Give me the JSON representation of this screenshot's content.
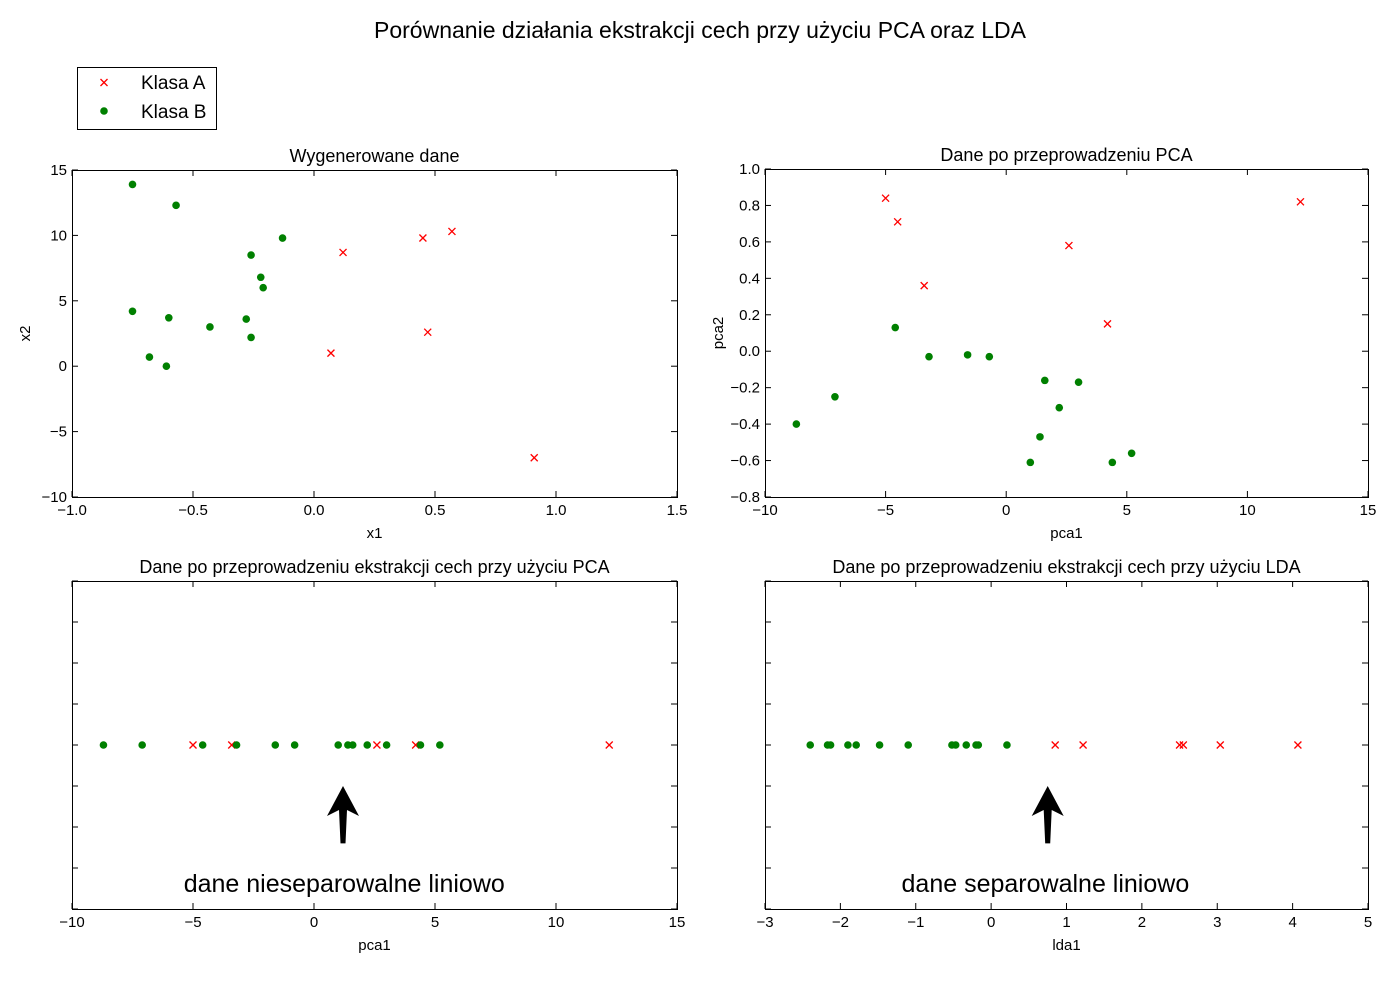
{
  "figure": {
    "title": "Porównanie działania ekstrakcji cech przy użyciu PCA oraz LDA",
    "legend": {
      "placement": "top-left",
      "entries": [
        {
          "label": "Klasa A",
          "marker": "x",
          "color": "#ff0000"
        },
        {
          "label": "Klasa B",
          "marker": "o",
          "color": "#008000"
        }
      ]
    },
    "annotations": {
      "pca": "dane nieseparowalne liniowo",
      "lda": "dane separowalne liniowo"
    }
  },
  "colors": {
    "class_a": "#ff0000",
    "class_b": "#008000"
  },
  "chart_data": [
    {
      "id": "generated",
      "type": "scatter",
      "title": "Wygenerowane dane",
      "xlabel": "x1",
      "ylabel": "x2",
      "xlim": [
        -1.0,
        1.5
      ],
      "ylim": [
        -10,
        15
      ],
      "xticks": [
        -1.0,
        -0.5,
        0.0,
        0.5,
        1.0,
        1.5
      ],
      "xtick_labels": [
        "−1.0",
        "−0.5",
        "0.0",
        "0.5",
        "1.0",
        "1.5"
      ],
      "yticks": [
        -10,
        -5,
        0,
        5,
        10,
        15
      ],
      "ytick_labels": [
        "−10",
        "−5",
        "0",
        "5",
        "10",
        "15"
      ],
      "grid": false,
      "series": [
        {
          "name": "Klasa A",
          "marker": "x",
          "color": "#ff0000",
          "points": [
            [
              0.12,
              8.7
            ],
            [
              0.45,
              9.8
            ],
            [
              0.57,
              10.3
            ],
            [
              0.07,
              1.0
            ],
            [
              0.47,
              2.6
            ],
            [
              0.91,
              -7.0
            ]
          ]
        },
        {
          "name": "Klasa B",
          "marker": "o",
          "color": "#008000",
          "points": [
            [
              -0.75,
              13.9
            ],
            [
              -0.57,
              12.3
            ],
            [
              -0.13,
              9.8
            ],
            [
              -0.26,
              8.5
            ],
            [
              -0.22,
              6.8
            ],
            [
              -0.21,
              6.0
            ],
            [
              -0.75,
              4.2
            ],
            [
              -0.6,
              3.7
            ],
            [
              -0.43,
              3.0
            ],
            [
              -0.28,
              3.6
            ],
            [
              -0.26,
              2.2
            ],
            [
              -0.68,
              0.7
            ],
            [
              -0.61,
              0.0
            ]
          ]
        }
      ]
    },
    {
      "id": "pca2d",
      "type": "scatter",
      "title": "Dane po przeprowadzeniu PCA",
      "xlabel": "pca1",
      "ylabel": "pca2",
      "xlim": [
        -10,
        15
      ],
      "ylim": [
        -0.8,
        1.0
      ],
      "xticks": [
        -10,
        -5,
        0,
        5,
        10,
        15
      ],
      "xtick_labels": [
        "−10",
        "−5",
        "0",
        "5",
        "10",
        "15"
      ],
      "yticks": [
        -0.8,
        -0.6,
        -0.4,
        -0.2,
        0.0,
        0.2,
        0.4,
        0.6,
        0.8,
        1.0
      ],
      "ytick_labels": [
        "−0.8",
        "−0.6",
        "−0.4",
        "−0.2",
        "0.0",
        "0.2",
        "0.4",
        "0.6",
        "0.8",
        "1.0"
      ],
      "grid": false,
      "series": [
        {
          "name": "Klasa A",
          "marker": "x",
          "color": "#ff0000",
          "points": [
            [
              -5.0,
              0.84
            ],
            [
              -4.5,
              0.71
            ],
            [
              -3.4,
              0.36
            ],
            [
              2.6,
              0.58
            ],
            [
              4.2,
              0.15
            ],
            [
              12.2,
              0.82
            ]
          ]
        },
        {
          "name": "Klasa B",
          "marker": "o",
          "color": "#008000",
          "points": [
            [
              -8.7,
              -0.4
            ],
            [
              -7.1,
              -0.25
            ],
            [
              -4.6,
              0.13
            ],
            [
              -3.2,
              -0.03
            ],
            [
              -1.6,
              -0.02
            ],
            [
              -0.7,
              -0.03
            ],
            [
              1.0,
              -0.61
            ],
            [
              1.4,
              -0.47
            ],
            [
              1.6,
              -0.16
            ],
            [
              2.2,
              -0.31
            ],
            [
              3.0,
              -0.17
            ],
            [
              4.4,
              -0.61
            ],
            [
              5.2,
              -0.56
            ]
          ]
        }
      ]
    },
    {
      "id": "pca1d",
      "type": "scatter",
      "title": "Dane po przeprowadzeniu ekstrakcji cech przy użyciu PCA",
      "xlabel": "pca1",
      "ylabel": "",
      "xlim": [
        -10,
        15
      ],
      "ylim": [
        -0.8,
        0.8
      ],
      "xticks": [
        -10,
        -5,
        0,
        5,
        10,
        15
      ],
      "xtick_labels": [
        "−10",
        "−5",
        "0",
        "5",
        "10",
        "15"
      ],
      "yticks": [
        -0.8,
        -0.6,
        -0.4,
        -0.2,
        0.0,
        0.2,
        0.4,
        0.6,
        0.8
      ],
      "ytick_labels": [],
      "grid": false,
      "series": [
        {
          "name": "Klasa A",
          "marker": "x",
          "color": "#ff0000",
          "points": [
            [
              -5.0,
              0
            ],
            [
              -3.4,
              0
            ],
            [
              2.6,
              0
            ],
            [
              4.2,
              0
            ],
            [
              12.2,
              0
            ]
          ]
        },
        {
          "name": "Klasa B",
          "marker": "o",
          "color": "#008000",
          "points": [
            [
              -8.7,
              0
            ],
            [
              -7.1,
              0
            ],
            [
              -4.6,
              0
            ],
            [
              -3.2,
              0
            ],
            [
              -1.6,
              0
            ],
            [
              -0.8,
              0
            ],
            [
              1.0,
              0
            ],
            [
              1.4,
              0
            ],
            [
              1.6,
              0
            ],
            [
              2.2,
              0
            ],
            [
              3.0,
              0
            ],
            [
              4.4,
              0
            ],
            [
              5.2,
              0
            ]
          ]
        }
      ],
      "arrow": {
        "x": 1.2,
        "y_tail": -0.48,
        "y_head": -0.2
      }
    },
    {
      "id": "lda1d",
      "type": "scatter",
      "title": "Dane po przeprowadzeniu ekstrakcji cech przy użyciu LDA",
      "xlabel": "lda1",
      "ylabel": "",
      "xlim": [
        -3,
        5
      ],
      "ylim": [
        -0.8,
        0.8
      ],
      "xticks": [
        -3,
        -2,
        -1,
        0,
        1,
        2,
        3,
        4,
        5
      ],
      "xtick_labels": [
        "−3",
        "−2",
        "−1",
        "0",
        "1",
        "2",
        "3",
        "4",
        "5"
      ],
      "yticks": [
        -0.8,
        -0.6,
        -0.4,
        -0.2,
        0.0,
        0.2,
        0.4,
        0.6,
        0.8
      ],
      "ytick_labels": [],
      "grid": false,
      "series": [
        {
          "name": "Klasa A",
          "marker": "x",
          "color": "#ff0000",
          "points": [
            [
              0.85,
              0
            ],
            [
              1.22,
              0
            ],
            [
              2.5,
              0
            ],
            [
              2.55,
              0
            ],
            [
              3.04,
              0
            ],
            [
              4.07,
              0
            ]
          ]
        },
        {
          "name": "Klasa B",
          "marker": "o",
          "color": "#008000",
          "points": [
            [
              -2.4,
              0
            ],
            [
              -2.17,
              0
            ],
            [
              -2.13,
              0
            ],
            [
              -1.9,
              0
            ],
            [
              -1.79,
              0
            ],
            [
              -1.48,
              0
            ],
            [
              -1.1,
              0
            ],
            [
              -0.52,
              0
            ],
            [
              -0.47,
              0
            ],
            [
              -0.33,
              0
            ],
            [
              -0.2,
              0
            ],
            [
              -0.17,
              0
            ],
            [
              0.21,
              0
            ]
          ]
        }
      ],
      "arrow": {
        "x": 0.75,
        "y_tail": -0.48,
        "y_head": -0.2
      }
    }
  ]
}
